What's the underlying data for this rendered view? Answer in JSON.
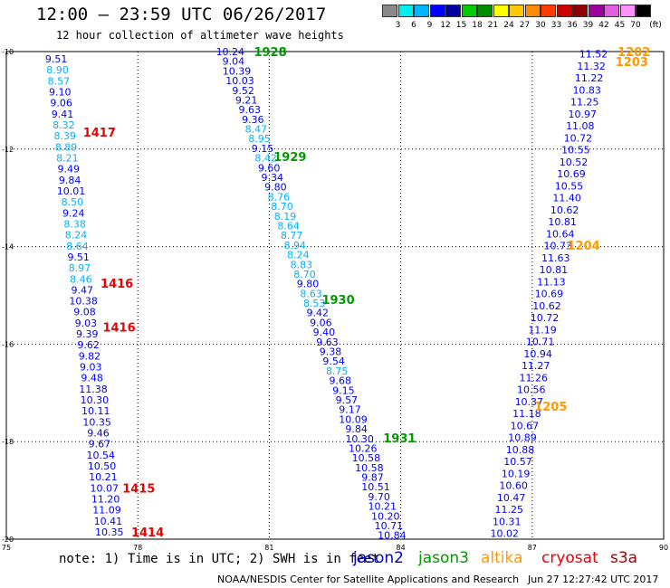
{
  "header": {
    "title": "12:00 — 23:59 UTC 06/26/2017",
    "subtitle": "12 hour collection of altimeter wave heights"
  },
  "colorbar": {
    "unit": "(ft)",
    "ticks": [
      "3",
      "6",
      "9",
      "12",
      "15",
      "18",
      "21",
      "24",
      "27",
      "30",
      "33",
      "36",
      "39",
      "42",
      "45",
      "70"
    ],
    "colors": [
      "#8a8a8a",
      "#00eeee",
      "#00b4ff",
      "#0000ff",
      "#0000a0",
      "#00cc00",
      "#008c00",
      "#ffff00",
      "#ffc800",
      "#ff8c00",
      "#ff3c00",
      "#cc0000",
      "#8c0000",
      "#a000a0",
      "#e060e0",
      "#ff90ff",
      "#000000"
    ]
  },
  "footer": {
    "note": "note: 1) Time is in UTC; 2) SWH is in feet",
    "legend": [
      {
        "name": "jason2",
        "color": "#0000cc"
      },
      {
        "name": "jason3",
        "color": "#009900"
      },
      {
        "name": "altika",
        "color": "#ff9900"
      },
      {
        "name": "cryosat",
        "color": "#ee0000"
      },
      {
        "name": "s3a",
        "color": "#aa0000"
      }
    ],
    "credit": "NOAA/NESDIS Center for Satellite Applications and Research",
    "timestamp": "Jun 27 12:27:42 UTC 2017"
  },
  "chart_data": {
    "type": "scatter",
    "xlim": [
      75,
      90
    ],
    "ylim": [
      -20,
      -10
    ],
    "x_ticks": [
      75,
      78,
      81,
      84,
      87,
      90
    ],
    "y_ticks": [
      -10,
      -12,
      -14,
      -16,
      -18,
      -20
    ],
    "x_tick_labels": [
      "75",
      "78",
      "81",
      "84",
      "87",
      "90"
    ],
    "y_tick_labels": [
      "-10",
      "-12",
      "-14",
      "-16",
      "-18",
      "-20"
    ],
    "grid": true,
    "color_scale": {
      "thresholds": [
        3,
        6,
        9,
        12,
        15,
        18,
        21,
        24,
        27,
        30,
        33,
        36,
        39,
        42,
        45,
        70
      ],
      "colors": [
        "#8a8a8a",
        "#00eeee",
        "#00b4ff",
        "#0000ff",
        "#0000a0",
        "#00cc00",
        "#008c00",
        "#ffff00",
        "#ffc800",
        "#ff8c00",
        "#ff3c00",
        "#cc0000",
        "#8c0000",
        "#a000a0",
        "#e060e0",
        "#ff90ff",
        "#000000"
      ]
    },
    "tracks": [
      {
        "satellite": "cryosat",
        "lon_start": 76.14,
        "lat_start": -10.15,
        "lon_end": 77.35,
        "lat_end": -19.85,
        "values": [
          9.51,
          8.9,
          8.57,
          9.1,
          9.06,
          9.41,
          8.32,
          8.39,
          8.89,
          8.21,
          9.49,
          9.84,
          10.01,
          8.5,
          9.24,
          8.38,
          8.24,
          8.64,
          9.51,
          8.97,
          8.46,
          9.47,
          10.38,
          9.08,
          9.03,
          9.39,
          9.62,
          9.82,
          9.03,
          9.48,
          11.38,
          10.3,
          10.11,
          10.35,
          9.46,
          9.67,
          10.54,
          10.5,
          10.21,
          10.07,
          11.2,
          11.09,
          10.41,
          10.35
        ]
      },
      {
        "satellite": "jason3",
        "lon_start": 80.11,
        "lat_start": -10.0,
        "lon_end": 83.8,
        "lat_end": -19.92,
        "values": [
          10.24,
          9.04,
          10.39,
          10.03,
          9.52,
          9.21,
          9.63,
          9.36,
          8.47,
          8.95,
          9.15,
          8.42,
          9.6,
          9.34,
          9.8,
          8.76,
          8.7,
          8.19,
          8.64,
          8.77,
          8.94,
          8.24,
          8.83,
          8.7,
          9.8,
          8.63,
          8.53,
          9.42,
          9.06,
          9.4,
          9.63,
          9.38,
          9.54,
          8.75,
          9.68,
          9.15,
          9.57,
          9.17,
          10.09,
          9.84,
          10.3,
          10.26,
          10.58,
          10.58,
          9.87,
          10.51,
          9.7,
          10.21,
          10.2,
          10.71,
          10.84
        ]
      },
      {
        "satellite": "altika",
        "lon_start": 88.4,
        "lat_start": -10.05,
        "lon_end": 86.37,
        "lat_end": -19.88,
        "values": [
          11.52,
          11.32,
          11.22,
          10.83,
          11.25,
          10.97,
          11.08,
          10.72,
          10.55,
          10.52,
          10.69,
          10.55,
          11.4,
          10.62,
          10.81,
          10.64,
          10.73,
          11.63,
          10.81,
          11.13,
          10.69,
          10.62,
          10.72,
          11.19,
          10.71,
          10.94,
          11.27,
          11.26,
          10.56,
          10.37,
          11.18,
          10.67,
          10.89,
          10.88,
          10.57,
          10.19,
          10.6,
          10.47,
          11.25,
          10.31,
          10.02
        ]
      }
    ],
    "time_labels": [
      {
        "text": "1928",
        "lon": 80.65,
        "lat": -10.0,
        "satellite": "jason3"
      },
      {
        "text": "1929",
        "lon": 81.1,
        "lat": -12.15,
        "satellite": "jason3"
      },
      {
        "text": "1930",
        "lon": 82.2,
        "lat": -15.08,
        "satellite": "jason3"
      },
      {
        "text": "1931",
        "lon": 83.6,
        "lat": -17.92,
        "satellite": "jason3"
      },
      {
        "text": "1417",
        "lon": 76.75,
        "lat": -11.65,
        "satellite": "cryosat"
      },
      {
        "text": "1416",
        "lon": 77.15,
        "lat": -14.75,
        "satellite": "cryosat"
      },
      {
        "text": "1416",
        "lon": 77.2,
        "lat": -15.65,
        "satellite": "cryosat"
      },
      {
        "text": "1415",
        "lon": 77.65,
        "lat": -18.95,
        "satellite": "cryosat"
      },
      {
        "text": "1414",
        "lon": 77.85,
        "lat": -19.85,
        "satellite": "cryosat"
      },
      {
        "text": "1202",
        "lon": 88.95,
        "lat": -10.0,
        "satellite": "altika"
      },
      {
        "text": "1203",
        "lon": 88.9,
        "lat": -10.2,
        "satellite": "altika"
      },
      {
        "text": "1204",
        "lon": 87.8,
        "lat": -13.97,
        "satellite": "altika"
      },
      {
        "text": "1205",
        "lon": 87.05,
        "lat": -17.27,
        "satellite": "altika"
      }
    ]
  }
}
